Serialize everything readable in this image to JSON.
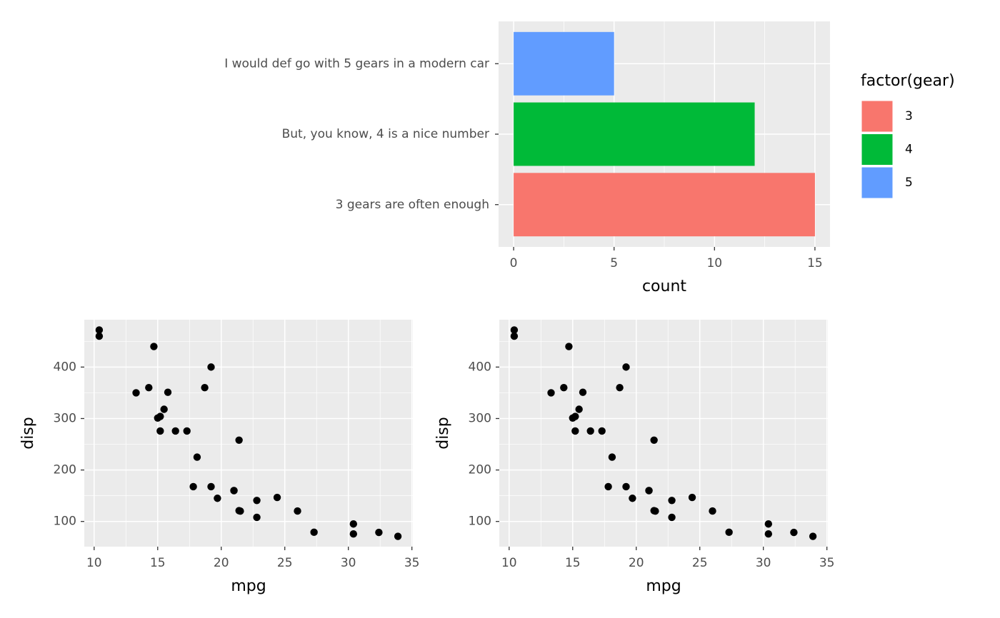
{
  "chart_data": [
    {
      "type": "bar",
      "orientation": "horizontal",
      "categories": [
        "3 gears are often enough",
        "But, you know, 4 is a nice number",
        "I would def go with 5 gears in a modern car"
      ],
      "values": [
        15,
        12,
        5
      ],
      "colors": [
        "#F8766D",
        "#00BA38",
        "#619CFF"
      ],
      "xlabel": "count",
      "xlim": [
        -0.75,
        15.75
      ],
      "xticks": [
        0,
        5,
        10,
        15
      ],
      "grid": true,
      "legend": {
        "title": "factor(gear)",
        "labels": [
          "3",
          "4",
          "5"
        ],
        "position": "right"
      }
    },
    {
      "type": "scatter",
      "xlabel": "mpg",
      "ylabel": "disp",
      "color": "#000000",
      "x": [
        21,
        21,
        22.8,
        21.4,
        18.7,
        18.1,
        14.3,
        24.4,
        22.8,
        19.2,
        17.8,
        16.4,
        17.3,
        15.2,
        10.4,
        10.4,
        14.7,
        32.4,
        30.4,
        33.9,
        21.5,
        15.5,
        15.2,
        13.3,
        19.2,
        27.3,
        26,
        30.4,
        15.8,
        19.7,
        15,
        21.4
      ],
      "values": [
        160,
        160,
        108,
        258,
        360,
        225,
        360,
        146.7,
        140.8,
        167.6,
        167.6,
        275.8,
        275.8,
        275.8,
        472,
        460,
        440,
        78.7,
        75.7,
        71.1,
        120.1,
        318,
        304,
        350,
        400,
        79,
        120.3,
        95.1,
        351,
        145,
        301,
        121
      ],
      "xlim": [
        9.225,
        35.075
      ],
      "xticks": [
        10,
        15,
        20,
        25,
        30,
        35
      ],
      "ylim": [
        51.055,
        492.045
      ],
      "yticks": [
        100,
        200,
        300,
        400
      ],
      "grid": true
    },
    {
      "type": "scatter",
      "xlabel": "mpg",
      "ylabel": "disp",
      "color": "#000000",
      "x": [
        21,
        21,
        22.8,
        21.4,
        18.7,
        18.1,
        14.3,
        24.4,
        22.8,
        19.2,
        17.8,
        16.4,
        17.3,
        15.2,
        10.4,
        10.4,
        14.7,
        32.4,
        30.4,
        33.9,
        21.5,
        15.5,
        15.2,
        13.3,
        19.2,
        27.3,
        26,
        30.4,
        15.8,
        19.7,
        15,
        21.4
      ],
      "values": [
        160,
        160,
        108,
        258,
        360,
        225,
        360,
        146.7,
        140.8,
        167.6,
        167.6,
        275.8,
        275.8,
        275.8,
        472,
        460,
        440,
        78.7,
        75.7,
        71.1,
        120.1,
        318,
        304,
        350,
        400,
        79,
        120.3,
        95.1,
        351,
        145,
        301,
        121
      ],
      "xlim": [
        9.225,
        35.075
      ],
      "xticks": [
        10,
        15,
        20,
        25,
        30,
        35
      ],
      "ylim": [
        51.055,
        492.045
      ],
      "yticks": [
        100,
        200,
        300,
        400
      ],
      "grid": true
    }
  ]
}
